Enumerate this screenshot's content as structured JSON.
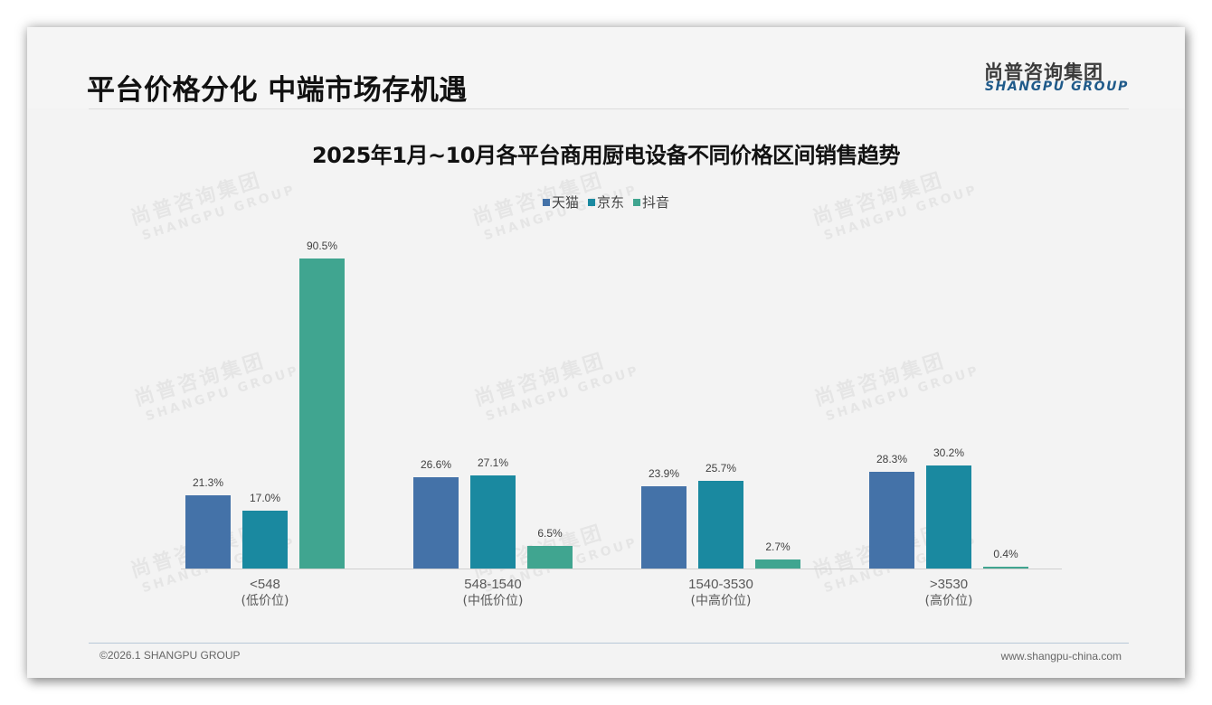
{
  "header": {
    "title": "平台价格分化 中端市场存机遇",
    "logo_cn": "尚普咨询集团",
    "logo_en": "SHANGPU GROUP"
  },
  "watermark": {
    "cn": "尚普咨询集团",
    "en": "SHANGPU GROUP"
  },
  "footer": {
    "copyright": "©2026.1 SHANGPU GROUP",
    "website": "www.shangpu-china.com"
  },
  "colors": {
    "tmall": "#4472a8",
    "jd": "#1a89a0",
    "douyin": "#40a590",
    "background": "#f3f3f3"
  },
  "chart_data": {
    "type": "bar",
    "title": "2025年1月~10月各平台商用厨电设备不同价格区间销售趋势",
    "xlabel": "",
    "ylabel": "",
    "ylim": [
      0,
      100
    ],
    "grid": false,
    "legend_position": "top",
    "categories": [
      "<548\n(低价位)",
      "548-1540\n(中低价位)",
      "1540-3530\n(中高价位)",
      ">3530\n(高价位)"
    ],
    "category_labels": [
      {
        "range": "<548",
        "tier": "(低价位)"
      },
      {
        "range": "548-1540",
        "tier": "(中低价位)"
      },
      {
        "range": "1540-3530",
        "tier": "(中高价位)"
      },
      {
        "range": ">3530",
        "tier": "(高价位)"
      }
    ],
    "series": [
      {
        "name": "天猫",
        "color": "#4472a8",
        "values": [
          21.3,
          26.6,
          23.9,
          28.3
        ],
        "labels": [
          "21.3%",
          "26.6%",
          "23.9%",
          "28.3%"
        ]
      },
      {
        "name": "京东",
        "color": "#1a89a0",
        "values": [
          17.0,
          27.1,
          25.7,
          30.2
        ],
        "labels": [
          "17.0%",
          "27.1%",
          "25.7%",
          "30.2%"
        ]
      },
      {
        "name": "抖音",
        "color": "#40a590",
        "values": [
          90.5,
          6.5,
          2.7,
          0.4
        ],
        "labels": [
          "90.5%",
          "6.5%",
          "2.7%",
          "0.4%"
        ]
      }
    ],
    "unit": "%"
  }
}
